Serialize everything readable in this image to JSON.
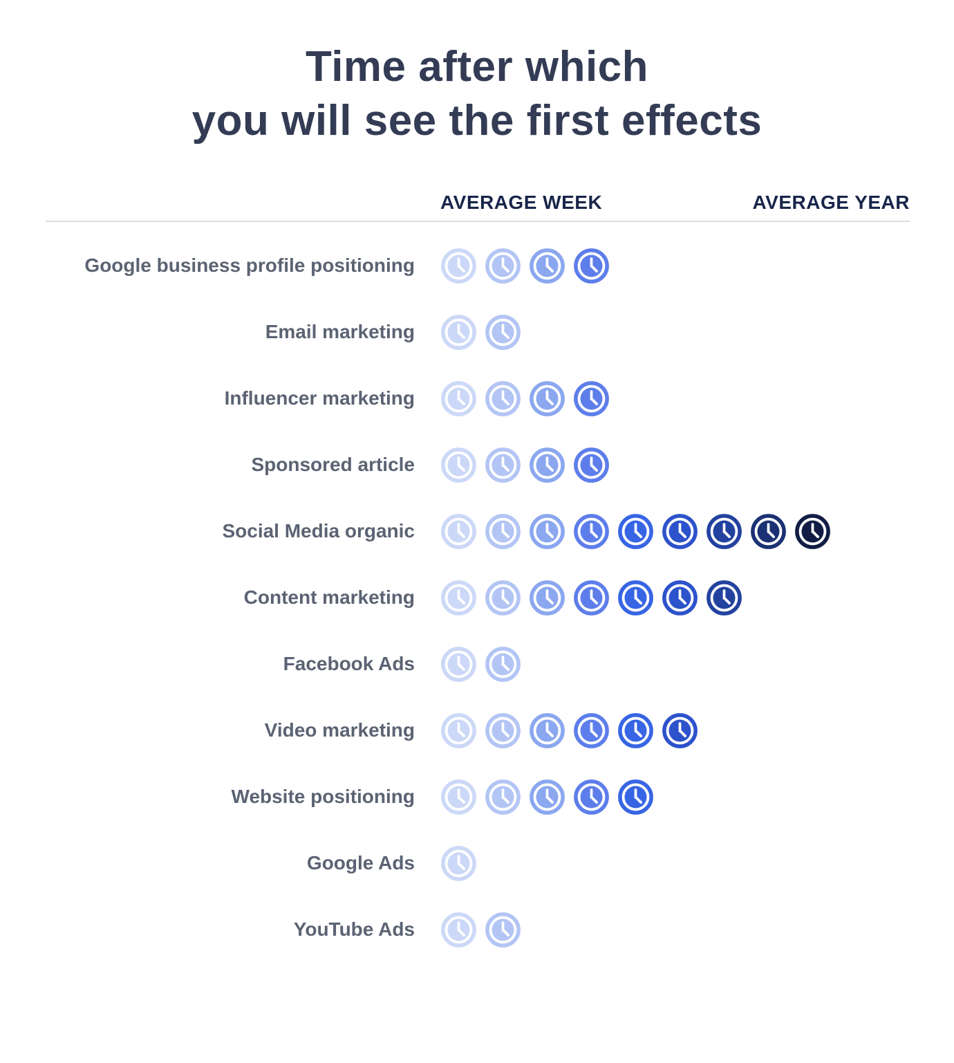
{
  "title": {
    "line1": "Time after which",
    "line2": "you will see the first effects"
  },
  "columns": {
    "week": "AVERAGE WEEK",
    "year": "AVERAGE YEAR"
  },
  "rows": [
    {
      "label": "Google business profile positioning",
      "clocks": 4
    },
    {
      "label": "Email marketing",
      "clocks": 2
    },
    {
      "label": "Influencer marketing",
      "clocks": 4
    },
    {
      "label": "Sponsored article",
      "clocks": 4
    },
    {
      "label": "Social Media organic",
      "clocks": 9
    },
    {
      "label": "Content marketing",
      "clocks": 7
    },
    {
      "label": "Facebook Ads",
      "clocks": 2
    },
    {
      "label": "Video marketing",
      "clocks": 6
    },
    {
      "label": "Website positioning",
      "clocks": 5
    },
    {
      "label": "Google Ads",
      "clocks": 1
    },
    {
      "label": "YouTube Ads",
      "clocks": 2
    }
  ],
  "icon": {
    "name": "clock-icon",
    "palette": [
      "#ccd8f7",
      "#b3c5f4",
      "#8ba7ef",
      "#5d7eea",
      "#3765e4",
      "#2c53cb",
      "#23429f",
      "#1b3173",
      "#121d45"
    ]
  },
  "colors": {
    "background": "#ffffff",
    "title": "#333c54",
    "header": "#18254a",
    "label": "#5b6373",
    "divider": "#d9dce3"
  },
  "chart_data": {
    "type": "bar",
    "orientation": "horizontal",
    "title": "Time after which you will see the first effects",
    "categories": [
      "Google business profile positioning",
      "Email marketing",
      "Influencer marketing",
      "Sponsored article",
      "Social Media organic",
      "Content marketing",
      "Facebook Ads",
      "Video marketing",
      "Website positioning",
      "Google Ads",
      "YouTube Ads"
    ],
    "values": [
      4,
      2,
      4,
      4,
      9,
      7,
      2,
      6,
      5,
      1,
      2
    ],
    "value_unit": "clock icons on a scale from AVERAGE WEEK to AVERAGE YEAR",
    "column_headers": [
      "AVERAGE WEEK",
      "AVERAGE YEAR"
    ],
    "icon": "clock",
    "icon_palette": [
      "#ccd8f7",
      "#b3c5f4",
      "#8ba7ef",
      "#5d7eea",
      "#3765e4",
      "#2c53cb",
      "#23429f",
      "#1b3173",
      "#121d45"
    ],
    "legend": "off",
    "grid": "off"
  }
}
